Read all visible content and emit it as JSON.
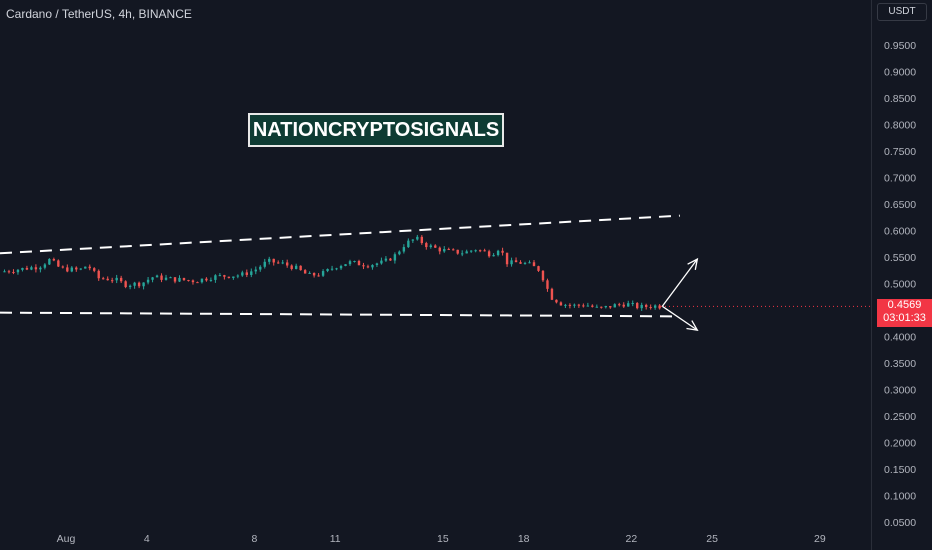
{
  "header": {
    "title": "Cardano / TetherUS, 4h, BINANCE"
  },
  "watermark": {
    "text": "NATIONCRYPTOSIGNALS"
  },
  "price_axis": {
    "currency": "USDT"
  },
  "current_price": {
    "value": "0.4569",
    "countdown": "03:01:33",
    "color": "#f23645"
  },
  "colors": {
    "background": "#131722",
    "up": "#26a69a",
    "down": "#ef5350",
    "text": "#b2b5be",
    "lines": "#ffffff"
  },
  "chart_data": {
    "type": "candlestick",
    "symbol": "Cardano / TetherUS",
    "interval": "4h",
    "exchange": "BINANCE",
    "ylim": [
      0.05,
      0.95
    ],
    "y_ticks": [
      "0.9500",
      "0.9000",
      "0.8500",
      "0.8000",
      "0.7500",
      "0.7000",
      "0.6500",
      "0.6000",
      "0.5500",
      "0.5000",
      "0.4500",
      "0.4000",
      "0.3500",
      "0.3000",
      "0.2500",
      "0.2000",
      "0.1500",
      "0.1000",
      "0.0500"
    ],
    "x_ticks": [
      {
        "label": "Aug",
        "day": 1
      },
      {
        "label": "4",
        "day": 4
      },
      {
        "label": "8",
        "day": 8
      },
      {
        "label": "11",
        "day": 11
      },
      {
        "label": "15",
        "day": 15
      },
      {
        "label": "18",
        "day": 18
      },
      {
        "label": "22",
        "day": 22
      },
      {
        "label": "25",
        "day": 25
      },
      {
        "label": "29",
        "day": 29
      }
    ],
    "x_range_days": [
      -1.45,
      30.9
    ],
    "price_path": [
      [
        -1.45,
        0.522
      ],
      [
        0.0,
        0.532
      ],
      [
        0.4,
        0.545
      ],
      [
        0.8,
        0.528
      ],
      [
        1.5,
        0.525
      ],
      [
        1.8,
        0.535
      ],
      [
        2.2,
        0.51
      ],
      [
        2.8,
        0.508
      ],
      [
        3.2,
        0.498
      ],
      [
        3.8,
        0.5
      ],
      [
        4.2,
        0.512
      ],
      [
        5.0,
        0.508
      ],
      [
        5.8,
        0.505
      ],
      [
        6.5,
        0.513
      ],
      [
        7.5,
        0.516
      ],
      [
        8.0,
        0.525
      ],
      [
        8.5,
        0.542
      ],
      [
        9.0,
        0.538
      ],
      [
        9.5,
        0.53
      ],
      [
        10.0,
        0.515
      ],
      [
        10.5,
        0.518
      ],
      [
        11.0,
        0.532
      ],
      [
        11.5,
        0.54
      ],
      [
        12.2,
        0.535
      ],
      [
        12.8,
        0.54
      ],
      [
        13.2,
        0.552
      ],
      [
        13.6,
        0.575
      ],
      [
        14.0,
        0.585
      ],
      [
        14.4,
        0.572
      ],
      [
        14.8,
        0.565
      ],
      [
        15.3,
        0.56
      ],
      [
        15.8,
        0.558
      ],
      [
        16.2,
        0.565
      ],
      [
        16.8,
        0.555
      ],
      [
        17.1,
        0.568
      ],
      [
        17.4,
        0.538
      ],
      [
        17.8,
        0.54
      ],
      [
        18.2,
        0.536
      ],
      [
        18.6,
        0.525
      ],
      [
        19.0,
        0.475
      ],
      [
        19.4,
        0.462
      ],
      [
        19.8,
        0.458
      ],
      [
        20.3,
        0.46
      ],
      [
        20.8,
        0.452
      ],
      [
        21.3,
        0.458
      ],
      [
        21.8,
        0.462
      ],
      [
        22.3,
        0.455
      ],
      [
        22.8,
        0.458
      ],
      [
        23.1,
        0.457
      ]
    ],
    "trendlines": [
      {
        "name": "upper channel",
        "style": "dashed",
        "points": [
          [
            -1.45,
            0.557
          ],
          [
            23.8,
            0.628
          ]
        ]
      },
      {
        "name": "lower channel",
        "style": "dashed",
        "points": [
          [
            -1.45,
            0.445
          ],
          [
            23.8,
            0.438
          ]
        ]
      }
    ],
    "projections": [
      {
        "from": [
          23.15,
          0.457
        ],
        "to": [
          24.45,
          0.546
        ]
      },
      {
        "from": [
          23.15,
          0.457
        ],
        "to": [
          24.45,
          0.412
        ]
      }
    ],
    "last_price": 0.4569,
    "grid": false
  }
}
